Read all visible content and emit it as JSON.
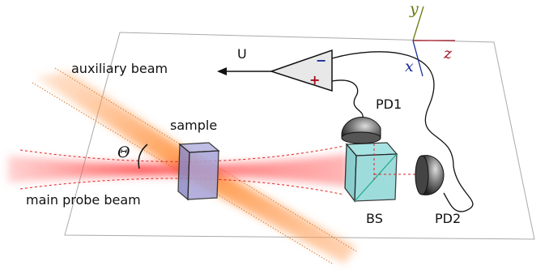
{
  "labels": {
    "auxiliary_beam": "auxiliary beam",
    "output": "U",
    "minus": "−",
    "plus": "+",
    "pd1": "PD1",
    "sample": "sample",
    "theta": "Θ",
    "main_beam": "main probe beam",
    "bs": "BS",
    "pd2": "PD2",
    "axis_y": "y",
    "axis_z": "z",
    "axis_x": "x"
  }
}
